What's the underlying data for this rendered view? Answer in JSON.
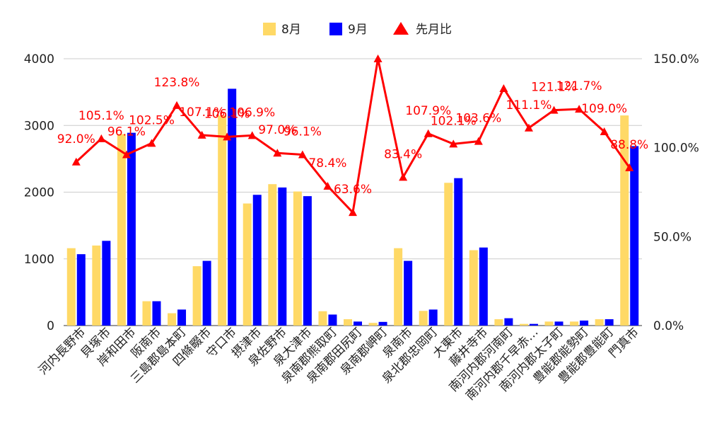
{
  "chart_data": {
    "type": "bar+line",
    "categories": [
      "河内長野市",
      "貝塚市",
      "岸和田市",
      "阪南市",
      "三島郡島本町",
      "四條畷市",
      "守口市",
      "摂津市",
      "泉佐野市",
      "泉大津市",
      "泉南郡熊取町",
      "泉南郡田尻町",
      "泉南郡岬町",
      "泉南市",
      "泉北郡忠岡町",
      "大東市",
      "藤井寺市",
      "南河内郡河南町",
      "南河内郡千早赤…",
      "南河内郡太子町",
      "豊能郡能勢町",
      "豊能郡豊能町",
      "門真市"
    ],
    "series": [
      {
        "name": "8月",
        "type": "bar",
        "axis": "left",
        "color": "#ffd966",
        "values": [
          1160,
          1200,
          2870,
          365,
          185,
          890,
          3150,
          1830,
          2120,
          2010,
          215,
          95,
          40,
          1160,
          220,
          2140,
          1130,
          95,
          25,
          60,
          60,
          95,
          3150
        ]
      },
      {
        "name": "9月",
        "type": "bar",
        "axis": "left",
        "color": "#0000ff",
        "values": [
          1070,
          1270,
          2890,
          365,
          240,
          970,
          3550,
          1960,
          2070,
          1940,
          165,
          60,
          55,
          970,
          240,
          2210,
          1170,
          110,
          25,
          60,
          75,
          95,
          2690
        ]
      },
      {
        "name": "先月比",
        "type": "line",
        "axis": "right",
        "color": "#ff0000",
        "values": [
          92.0,
          105.1,
          96.1,
          102.5,
          123.8,
          107.1,
          106.1,
          106.9,
          97.0,
          96.1,
          78.4,
          63.6,
          150.0,
          83.4,
          107.9,
          102.1,
          103.6,
          133.3,
          111.1,
          121.1,
          121.7,
          109.0,
          88.8
        ],
        "labels": [
          "92.0%",
          "105.1%",
          "96.1%",
          "102.5%",
          "123.8%",
          "107.1%",
          "106.1%",
          "106.9%",
          "97.0%",
          "96.1%",
          "78.4%",
          "63.6%",
          "",
          "83.4%",
          "107.9%",
          "102.1%",
          "103.6%",
          "",
          "111.1%",
          "121.1%",
          "121.7%",
          "109.0%",
          "88.8%"
        ]
      }
    ],
    "y_left": {
      "min": 0,
      "max": 4000,
      "ticks": [
        "0",
        "1000",
        "2000",
        "3000",
        "4000"
      ]
    },
    "y_right": {
      "min": 0,
      "max": 150,
      "ticks": [
        "0.0%",
        "50.0%",
        "100.0%",
        "150.0%"
      ]
    },
    "legend_position": "top",
    "grid": true
  }
}
